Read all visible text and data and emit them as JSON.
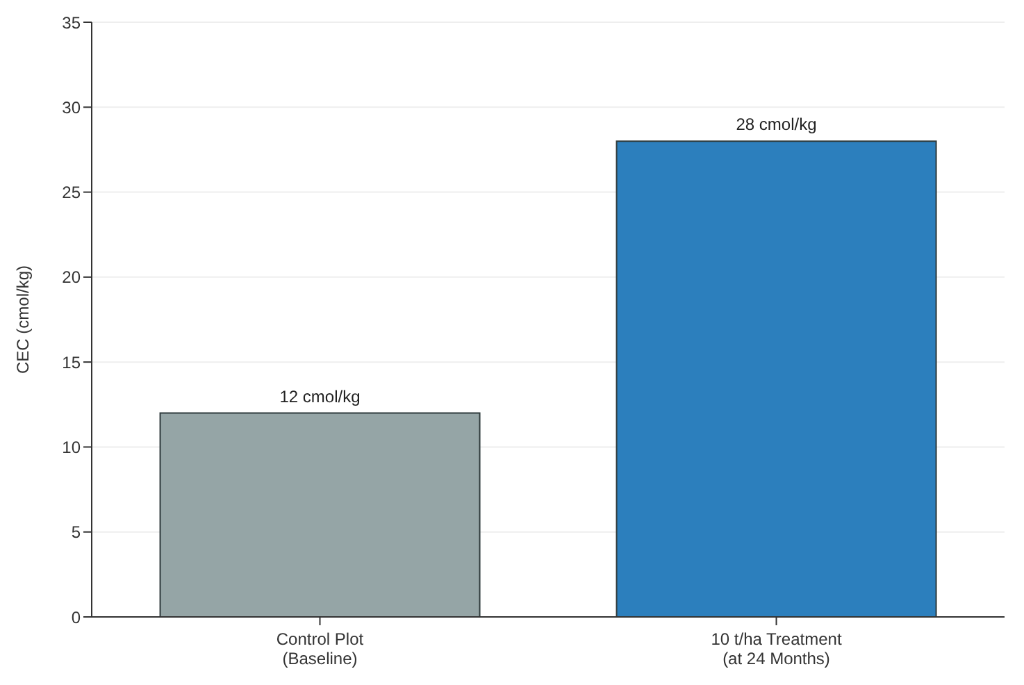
{
  "chart_data": {
    "type": "bar",
    "ylabel": "CEC (cmol/kg)",
    "categories": [
      "Control Plot\n(Baseline)",
      "10 t/ha Treatment\n(at 24 Months)"
    ],
    "values": [
      12,
      28
    ],
    "colors": [
      "#95a5a6",
      "#2c7fbd"
    ],
    "value_labels": [
      "12 cmol/kg",
      "28 cmol/kg"
    ],
    "ylim": [
      0,
      35
    ],
    "yticks": [
      0,
      5,
      10,
      15,
      20,
      25,
      30,
      35
    ],
    "grid": "y"
  }
}
